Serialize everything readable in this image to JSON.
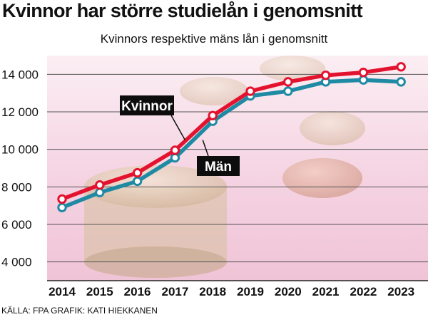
{
  "headline": "Kvinnor har större studielån i genomsnitt",
  "source": "KÄLLA: FPA GRAFIK: KATI HIEKKANEN",
  "colors": {
    "women": "#e3132f",
    "men": "#1f8aa3",
    "grid": "#555555",
    "label_bg": "#0d0d0d",
    "label_text": "#ffffff",
    "background_tint": "#f6d6e4"
  },
  "chart_data": {
    "type": "line",
    "title": "Kvinnors respektive mäns lån i genomsnitt",
    "x": [
      "2014",
      "2015",
      "2016",
      "2017",
      "2018",
      "2019",
      "2020",
      "2021",
      "2022",
      "2023"
    ],
    "ylim": [
      3000,
      15000
    ],
    "yticks": [
      4000,
      6000,
      8000,
      10000,
      12000,
      14000
    ],
    "ytick_labels": [
      "4 000",
      "6 000",
      "8 000",
      "10 000",
      "12 000",
      "14 000"
    ],
    "grid": true,
    "legend": "inline labels on lines",
    "series": [
      {
        "name": "Kvinnor",
        "color": "#e3132f",
        "values": [
          7350,
          8100,
          8750,
          9950,
          11800,
          13100,
          13600,
          13950,
          14100,
          14400
        ]
      },
      {
        "name": "Män",
        "color": "#1f8aa3",
        "values": [
          6900,
          7700,
          8300,
          9550,
          11500,
          12850,
          13100,
          13600,
          13700,
          13600
        ]
      }
    ]
  }
}
